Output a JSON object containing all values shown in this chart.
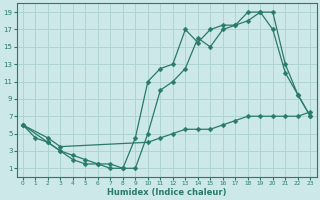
{
  "xlabel": "Humidex (Indice chaleur)",
  "bg_color": "#cce8e8",
  "grid_color": "#b0d4d4",
  "line_color": "#2a7a6a",
  "xlim": [
    -0.5,
    23.5
  ],
  "ylim": [
    0,
    20
  ],
  "xticks": [
    0,
    1,
    2,
    3,
    4,
    5,
    6,
    7,
    8,
    9,
    10,
    11,
    12,
    13,
    14,
    15,
    16,
    17,
    18,
    19,
    20,
    21,
    22,
    23
  ],
  "yticks": [
    1,
    3,
    5,
    7,
    9,
    11,
    13,
    15,
    17,
    19
  ],
  "line1_x": [
    0,
    1,
    2,
    3,
    4,
    5,
    6,
    7,
    8,
    9,
    10,
    11,
    12,
    13,
    14,
    15,
    16,
    17,
    18,
    19,
    20,
    21,
    22,
    23
  ],
  "line1_y": [
    6,
    4.5,
    4,
    3,
    2.5,
    2,
    1.5,
    1,
    1,
    4.5,
    11,
    12.5,
    13,
    17,
    15.5,
    17,
    17.5,
    17.5,
    19,
    19,
    17,
    12,
    9.5,
    7
  ],
  "line2_x": [
    0,
    2,
    3,
    4,
    5,
    6,
    7,
    8,
    9,
    10,
    11,
    12,
    13,
    14,
    15,
    16,
    17,
    18,
    19,
    20,
    21,
    22,
    23
  ],
  "line2_y": [
    6,
    4,
    3,
    2,
    1.5,
    1.5,
    1.5,
    1,
    1,
    5,
    10,
    11,
    12.5,
    16,
    15,
    17,
    17.5,
    18,
    19,
    19,
    13,
    9.5,
    7
  ],
  "line3_x": [
    0,
    2,
    3,
    10,
    11,
    12,
    13,
    14,
    15,
    16,
    17,
    18,
    19,
    20,
    21,
    22,
    23
  ],
  "line3_y": [
    6,
    4.5,
    3.5,
    4,
    4.5,
    5,
    5.5,
    5.5,
    5.5,
    6,
    6.5,
    7,
    7,
    7,
    7,
    7,
    7.5
  ]
}
